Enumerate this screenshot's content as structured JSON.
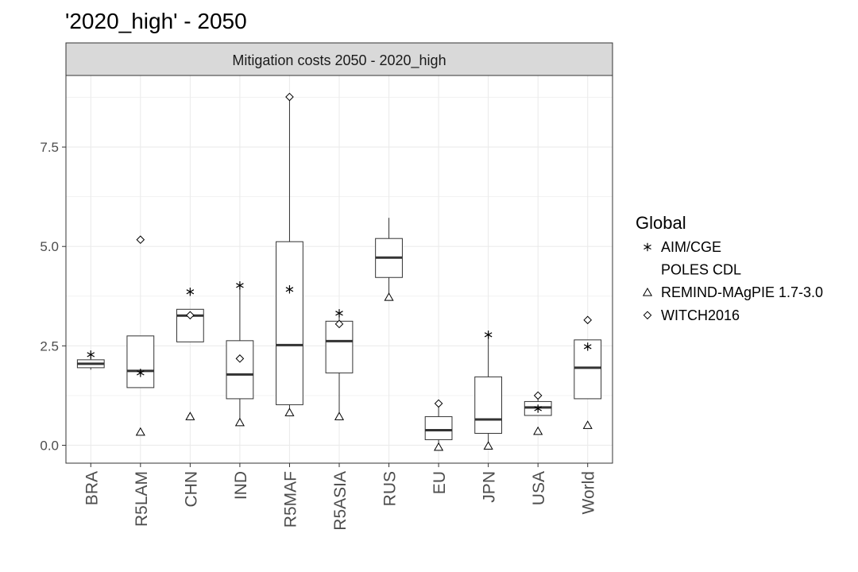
{
  "chart_data": {
    "type": "box",
    "title": "'2020_high' - 2050",
    "facet_label": "Mitigation costs 2050 - 2020_high",
    "xlabel": "",
    "ylabel": "",
    "ylim": [
      -0.45,
      9.3
    ],
    "yticks": [
      0.0,
      2.5,
      5.0,
      7.5
    ],
    "ytick_labels": [
      "0.0",
      "2.5",
      "5.0",
      "7.5"
    ],
    "grid": true,
    "legend": {
      "title": "Global",
      "position": "right",
      "entries": [
        {
          "name": "AIM/CGE",
          "shape": "asterisk"
        },
        {
          "name": "POLES CDL",
          "shape": "none"
        },
        {
          "name": "REMIND-MAgPIE 1.7-3.0",
          "shape": "triangle"
        },
        {
          "name": "WITCH2016",
          "shape": "diamond"
        }
      ]
    },
    "categories": [
      "BRA",
      "R5LAM",
      "CHN",
      "IND",
      "R5MAF",
      "R5ASIA",
      "RUS",
      "EU",
      "JPN",
      "USA",
      "World"
    ],
    "boxes": [
      {
        "lower": 1.9,
        "q1": 1.95,
        "median": 2.05,
        "q3": 2.15,
        "upper": 2.2,
        "outliers": []
      },
      {
        "lower": 1.45,
        "q1": 1.45,
        "median": 1.87,
        "q3": 2.75,
        "upper": 2.75,
        "outliers": [
          5.17
        ]
      },
      {
        "lower": 2.6,
        "q1": 2.6,
        "median": 3.26,
        "q3": 3.42,
        "upper": 3.42,
        "outliers": [
          0.72
        ]
      },
      {
        "lower": 0.57,
        "q1": 1.17,
        "median": 1.78,
        "q3": 2.63,
        "upper": 4.02,
        "outliers": []
      },
      {
        "lower": 0.82,
        "q1": 1.02,
        "median": 2.52,
        "q3": 5.12,
        "upper": 8.76,
        "outliers": []
      },
      {
        "lower": 0.72,
        "q1": 1.82,
        "median": 2.62,
        "q3": 3.12,
        "upper": 3.32,
        "outliers": []
      },
      {
        "lower": 3.72,
        "q1": 4.22,
        "median": 4.72,
        "q3": 5.2,
        "upper": 5.72,
        "outliers": []
      },
      {
        "lower": -0.05,
        "q1": 0.14,
        "median": 0.38,
        "q3": 0.72,
        "upper": 1.05,
        "outliers": []
      },
      {
        "lower": -0.02,
        "q1": 0.3,
        "median": 0.65,
        "q3": 1.72,
        "upper": 2.78,
        "outliers": []
      },
      {
        "lower": 0.75,
        "q1": 0.75,
        "median": 0.95,
        "q3": 1.1,
        "upper": 1.25,
        "outliers": []
      },
      {
        "lower": 1.17,
        "q1": 1.17,
        "median": 1.95,
        "q3": 2.65,
        "upper": 2.65,
        "outliers": []
      }
    ],
    "series": [
      {
        "name": "AIM/CGE",
        "shape": "asterisk",
        "values": [
          2.28,
          1.82,
          3.86,
          4.02,
          3.92,
          3.32,
          null,
          null,
          2.78,
          0.92,
          2.48
        ]
      },
      {
        "name": "POLES CDL",
        "shape": "none",
        "values": [
          null,
          null,
          null,
          null,
          null,
          null,
          null,
          null,
          null,
          null,
          null
        ]
      },
      {
        "name": "REMIND-MAgPIE 1.7-3.0",
        "shape": "triangle",
        "values": [
          null,
          0.33,
          0.72,
          0.57,
          0.82,
          0.72,
          3.72,
          -0.05,
          -0.02,
          0.35,
          0.5
        ]
      },
      {
        "name": "WITCH2016",
        "shape": "diamond",
        "values": [
          null,
          5.17,
          3.27,
          2.18,
          8.76,
          3.05,
          null,
          1.05,
          null,
          1.25,
          3.15
        ]
      }
    ]
  }
}
